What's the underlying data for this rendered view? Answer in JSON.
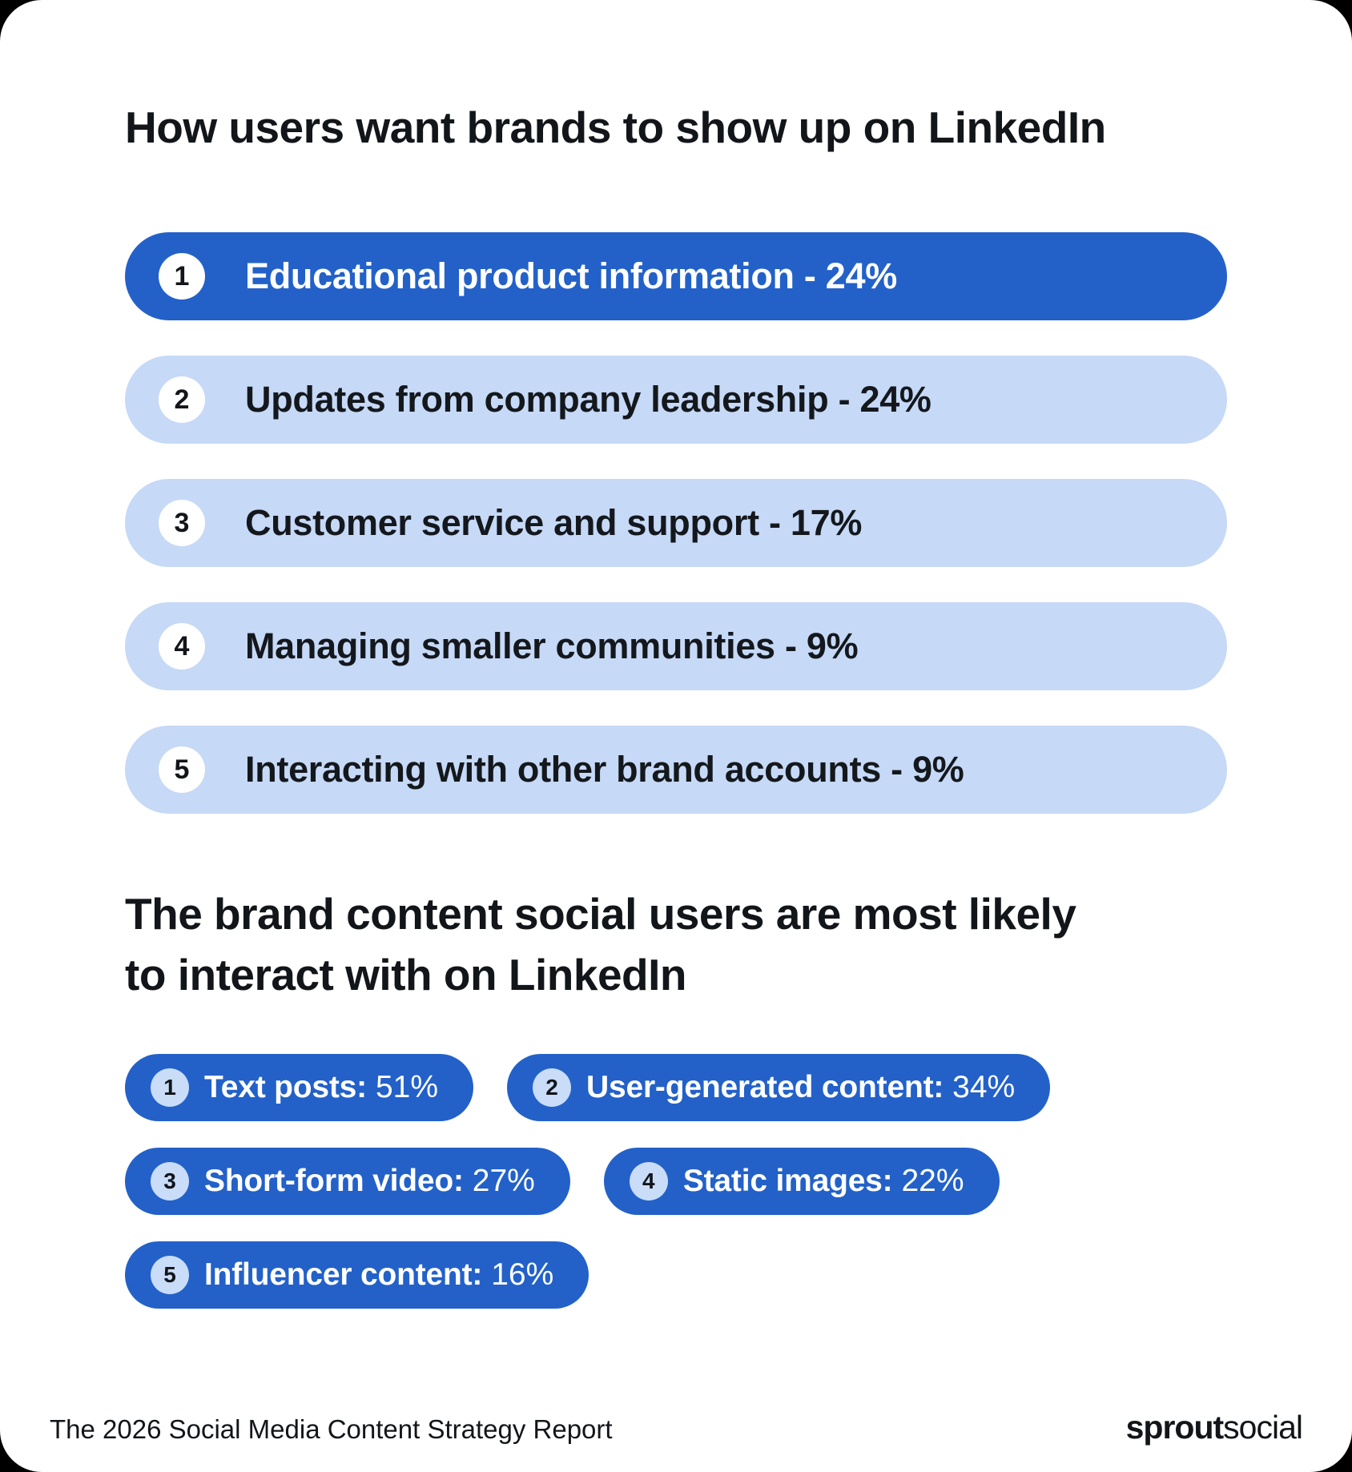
{
  "colors": {
    "primary_blue": "#2361C9",
    "light_blue": "#C6D9F6",
    "badge_light_blue": "#C9DCF8",
    "text_dark": "#121519",
    "text_white": "#FFFFFF",
    "canvas_bg": "#FFFFFF"
  },
  "section1": {
    "title": "How users want brands to show up on LinkedIn",
    "items": [
      {
        "rank": "1",
        "text": "Educational product information - 24%",
        "highlighted": true
      },
      {
        "rank": "2",
        "text": "Updates from company leadership - 24%",
        "highlighted": false
      },
      {
        "rank": "3",
        "text": "Customer service and support - 17%",
        "highlighted": false
      },
      {
        "rank": "4",
        "text": "Managing smaller communities - 9%",
        "highlighted": false
      },
      {
        "rank": "5",
        "text": "Interacting with other brand accounts - 9%",
        "highlighted": false
      }
    ]
  },
  "section2": {
    "title_line1": "The brand content social users are most likely",
    "title_line2": "to interact with on LinkedIn",
    "items": [
      {
        "rank": "1",
        "label": "Text posts:",
        "value": "51%"
      },
      {
        "rank": "2",
        "label": "User-generated content:",
        "value": "34%"
      },
      {
        "rank": "3",
        "label": "Short-form video:",
        "value": "27%"
      },
      {
        "rank": "4",
        "label": "Static images:",
        "value": "22%"
      },
      {
        "rank": "5",
        "label": "Influencer content:",
        "value": "16%"
      }
    ]
  },
  "footer": {
    "report_title": "The 2026 Social Media Content Strategy Report",
    "logo_bold": "sprout",
    "logo_light": "social"
  },
  "chart_data": [
    {
      "type": "bar",
      "title": "How users want brands to show up on LinkedIn",
      "categories": [
        "Educational product information",
        "Updates from company leadership",
        "Customer service and support",
        "Managing smaller communities",
        "Interacting with other brand accounts"
      ],
      "values": [
        24,
        24,
        17,
        9,
        9
      ],
      "unit": "%",
      "xlabel": "",
      "ylabel": "",
      "legend": false,
      "notes": "ranked list rendered as full-width pills; rank 1 highlighted in dark blue"
    },
    {
      "type": "bar",
      "title": "The brand content social users are most likely to interact with on LinkedIn",
      "categories": [
        "Text posts",
        "User-generated content",
        "Short-form video",
        "Static images",
        "Influencer content"
      ],
      "values": [
        51,
        34,
        27,
        22,
        16
      ],
      "unit": "%",
      "xlabel": "",
      "ylabel": "",
      "legend": false,
      "notes": "ranked list rendered as compact dark-blue pills"
    }
  ]
}
